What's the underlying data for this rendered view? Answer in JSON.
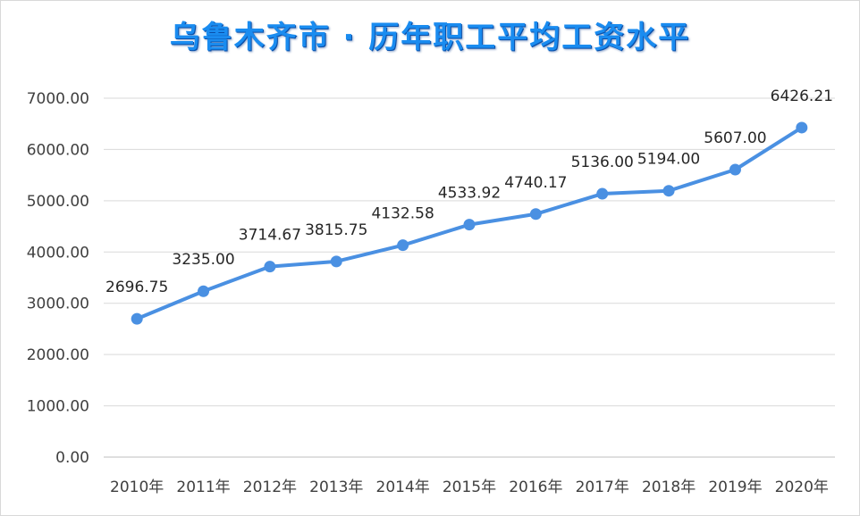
{
  "chart_data": {
    "type": "line",
    "title": "乌鲁木齐市 · 历年职工平均工资水平",
    "categories": [
      "2010年",
      "2011年",
      "2012年",
      "2013年",
      "2014年",
      "2015年",
      "2016年",
      "2017年",
      "2018年",
      "2019年",
      "2020年"
    ],
    "values": [
      2696.75,
      3235.0,
      3714.67,
      3815.75,
      4132.58,
      4533.92,
      4740.17,
      5136.0,
      5194.0,
      5607.0,
      6426.21
    ],
    "data_labels": [
      "2696.75",
      "3235.00",
      "3714.67",
      "3815.75",
      "4132.58",
      "4533.92",
      "4740.17",
      "5136.00",
      "5194.00",
      "5607.00",
      "6426.21"
    ],
    "ylim": [
      0,
      7000
    ],
    "yticks": [
      0,
      1000,
      2000,
      3000,
      4000,
      5000,
      6000,
      7000
    ],
    "ytick_labels": [
      "0.00",
      "1000.00",
      "2000.00",
      "3000.00",
      "4000.00",
      "5000.00",
      "6000.00",
      "7000.00"
    ],
    "grid": true,
    "line_color": "#4a90e2",
    "title_color": "#1a8cf0"
  }
}
